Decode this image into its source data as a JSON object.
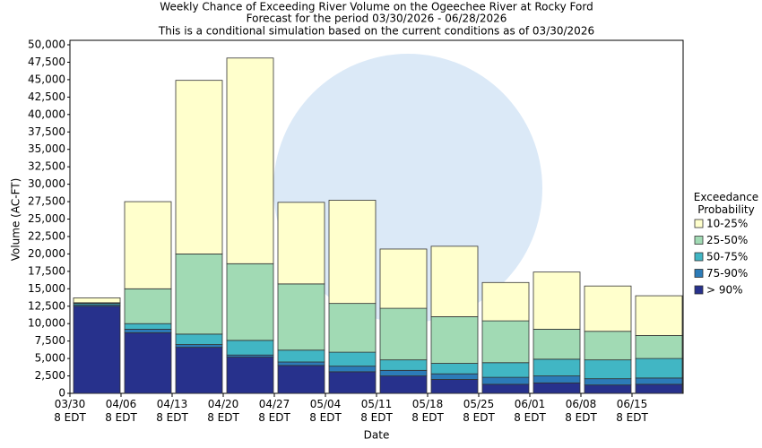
{
  "chart_data": {
    "type": "stacked_bar",
    "title": "Weekly Chance of Exceeding River Volume on the Ogeechee River at Rocky Ford",
    "subtitles": [
      "Forecast for the period 03/30/2026 - 06/28/2026",
      "This is a conditional simulation based on the current conditions as of 03/30/2026"
    ],
    "x_label": "Date",
    "y_label": "Volume (AC-FT)",
    "legend_title": "Exceedance Probability",
    "legend_position": "right",
    "categories": [
      "03/30 8 EDT",
      "04/06 8 EDT",
      "04/13 8 EDT",
      "04/20 8 EDT",
      "04/27 8 EDT",
      "05/04 8 EDT",
      "05/11 8 EDT",
      "05/18 8 EDT",
      "05/25 8 EDT",
      "06/01 8 EDT",
      "06/08 8 EDT",
      "06/15 8 EDT"
    ],
    "series": [
      {
        "name": "> 90%",
        "color": "#27318c",
        "values": [
          12500,
          8700,
          6600,
          5200,
          4000,
          3100,
          2500,
          2000,
          1300,
          1500,
          1200,
          1300
        ]
      },
      {
        "name": "75-90%",
        "color": "#2c7bb8",
        "values": [
          200,
          500,
          400,
          300,
          500,
          800,
          800,
          800,
          1000,
          1000,
          900,
          900
        ]
      },
      {
        "name": "50-75%",
        "color": "#41b6c4",
        "values": [
          200,
          800,
          1500,
          2100,
          1700,
          2000,
          1500,
          1500,
          2100,
          2400,
          2700,
          2800
        ]
      },
      {
        "name": "25-50%",
        "color": "#a1dab4",
        "values": [
          100,
          5000,
          11500,
          11000,
          9500,
          7000,
          7400,
          6700,
          6000,
          4300,
          4100,
          3300
        ]
      },
      {
        "name": "10-25%",
        "color": "#ffffcc",
        "values": [
          700,
          12500,
          24900,
          29500,
          11700,
          14800,
          8500,
          10100,
          5500,
          8200,
          6500,
          5700
        ]
      }
    ],
    "ylim": [
      0,
      50000
    ],
    "yticks": [
      0,
      {
        "value": 2500,
        "label": "2,500"
      },
      {
        "value": 5000,
        "label": "5,000"
      },
      {
        "value": 7500,
        "label": "7,500"
      },
      {
        "value": 10000,
        "label": "10,000"
      },
      {
        "value": 12500,
        "label": "12,500"
      },
      {
        "value": 15000,
        "label": "15,000"
      },
      {
        "value": 17500,
        "label": "17,500"
      },
      {
        "value": 20000,
        "label": "20,000"
      },
      {
        "value": 22500,
        "label": "22,500"
      },
      {
        "value": 25000,
        "label": "25,000"
      },
      {
        "value": 27500,
        "label": "27,500"
      },
      {
        "value": 30000,
        "label": "30,000"
      },
      {
        "value": 32500,
        "label": "32,500"
      },
      {
        "value": 35000,
        "label": "35,000"
      },
      {
        "value": 37500,
        "label": "37,500"
      },
      {
        "value": 40000,
        "label": "40,000"
      },
      {
        "value": 42500,
        "label": "42,500"
      },
      {
        "value": 45000,
        "label": "45,000"
      },
      {
        "value": 47500,
        "label": "47,500"
      },
      {
        "value": 50000,
        "label": "50,000"
      }
    ],
    "grid": false
  }
}
